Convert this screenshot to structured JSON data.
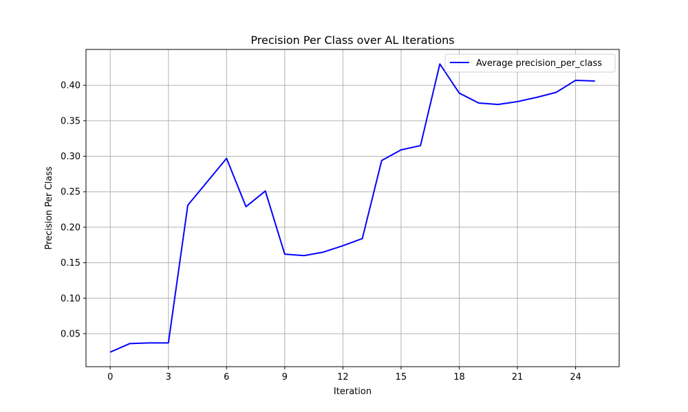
{
  "chart_data": {
    "type": "line",
    "title": "Precision Per Class over AL Iterations",
    "xlabel": "Iteration",
    "ylabel": "Precision Per Class",
    "xlim": [
      -1.25,
      26.25
    ],
    "ylim": [
      0.0035,
      0.4505
    ],
    "xticks": [
      0,
      3,
      6,
      9,
      12,
      15,
      18,
      21,
      24
    ],
    "xtick_labels": [
      "0",
      "3",
      "6",
      "9",
      "12",
      "15",
      "18",
      "21",
      "24"
    ],
    "yticks": [
      0.05,
      0.1,
      0.15,
      0.2,
      0.25,
      0.3,
      0.35,
      0.4
    ],
    "ytick_labels": [
      "0.05",
      "0.10",
      "0.15",
      "0.20",
      "0.25",
      "0.30",
      "0.35",
      "0.40"
    ],
    "grid": true,
    "legend_position": "top-right",
    "series": [
      {
        "name": "Average precision_per_class",
        "color": "#0000ff",
        "x": [
          0,
          1,
          2,
          3,
          4,
          5,
          6,
          7,
          8,
          9,
          10,
          11,
          12,
          13,
          14,
          15,
          16,
          17,
          18,
          19,
          20,
          21,
          22,
          23,
          24,
          25
        ],
        "values": [
          0.024,
          0.036,
          0.037,
          0.037,
          0.231,
          0.264,
          0.297,
          0.229,
          0.251,
          0.162,
          0.16,
          0.165,
          0.174,
          0.184,
          0.294,
          0.309,
          0.315,
          0.43,
          0.389,
          0.375,
          0.373,
          0.377,
          0.383,
          0.39,
          0.407,
          0.406
        ]
      }
    ]
  }
}
